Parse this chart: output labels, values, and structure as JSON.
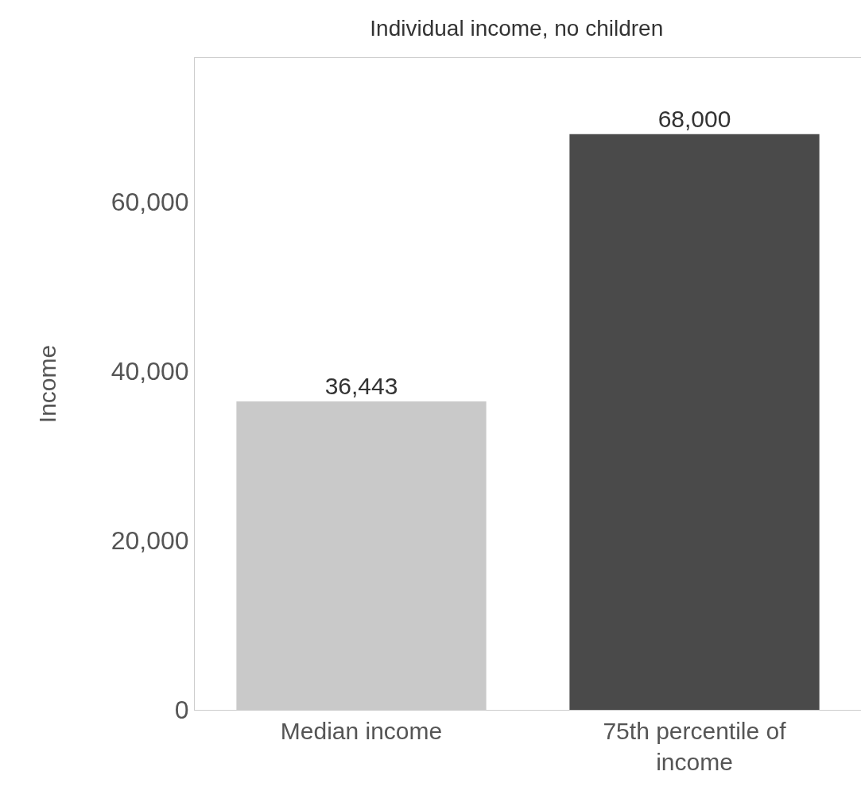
{
  "chart_data": {
    "type": "bar",
    "title": "Individual income, no children",
    "ylabel": "Income",
    "categories": [
      "Median income",
      "75th percentile of income"
    ],
    "values": [
      36443,
      68000
    ],
    "colors": [
      "#c9c9c9",
      "#4a4a4a"
    ],
    "ylim": [
      0,
      77000
    ],
    "yticks": [
      {
        "value": 0,
        "label": "0"
      },
      {
        "value": 20000,
        "label": "20,000"
      },
      {
        "value": 40000,
        "label": "40,000"
      },
      {
        "value": 60000,
        "label": "60,000"
      }
    ],
    "value_labels": [
      "36,443",
      "68,000"
    ]
  }
}
